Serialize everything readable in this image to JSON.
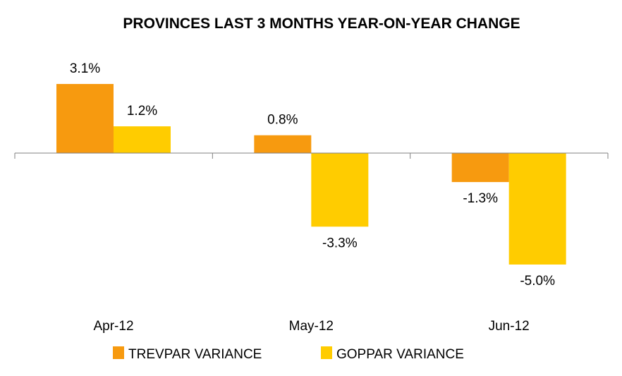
{
  "chart_data": {
    "type": "bar",
    "title": "PROVINCES LAST 3 MONTHS YEAR-ON-YEAR CHANGE",
    "categories": [
      "Apr-12",
      "May-12",
      "Jun-12"
    ],
    "series": [
      {
        "name": "TREVPAR VARIANCE",
        "values": [
          3.1,
          0.8,
          -1.3
        ],
        "labels": [
          "3.1%",
          "0.8%",
          "-1.3%"
        ],
        "color": "#F79A0F"
      },
      {
        "name": "GOPPAR VARIANCE",
        "values": [
          1.2,
          -3.3,
          -5.0
        ],
        "labels": [
          "1.2%",
          "-3.3%",
          "-5.0%"
        ],
        "color": "#FFCC00"
      }
    ],
    "ylim": [
      -6.5,
      5
    ],
    "grid": false,
    "legend": "bottom"
  }
}
